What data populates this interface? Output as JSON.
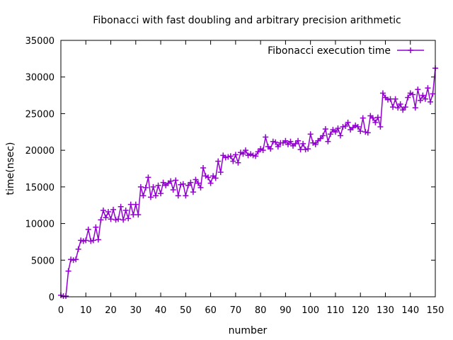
{
  "chart_data": {
    "type": "line",
    "title": "Fibonacci with fast doubling and arbitrary precision arithmetic",
    "xlabel": "number",
    "ylabel": "time(nsec)",
    "xlim": [
      0,
      150
    ],
    "ylim": [
      0,
      35000
    ],
    "xticks": [
      0,
      10,
      20,
      30,
      40,
      50,
      60,
      70,
      80,
      90,
      100,
      110,
      120,
      130,
      140,
      150
    ],
    "yticks": [
      0,
      5000,
      10000,
      15000,
      20000,
      25000,
      30000,
      35000
    ],
    "grid": false,
    "legend_position": "top-right",
    "series": [
      {
        "name": "Fibonacci execution time",
        "color": "#9400d3",
        "marker": "plus",
        "x": [
          0,
          1,
          2,
          3,
          4,
          5,
          6,
          7,
          8,
          9,
          10,
          11,
          12,
          13,
          14,
          15,
          16,
          17,
          18,
          19,
          20,
          21,
          22,
          23,
          24,
          25,
          26,
          27,
          28,
          29,
          30,
          31,
          32,
          33,
          34,
          35,
          36,
          37,
          38,
          39,
          40,
          41,
          42,
          43,
          44,
          45,
          46,
          47,
          48,
          49,
          50,
          51,
          52,
          53,
          54,
          55,
          56,
          57,
          58,
          59,
          60,
          61,
          62,
          63,
          64,
          65,
          66,
          67,
          68,
          69,
          70,
          71,
          72,
          73,
          74,
          75,
          76,
          77,
          78,
          79,
          80,
          81,
          82,
          83,
          84,
          85,
          86,
          87,
          88,
          89,
          90,
          91,
          92,
          93,
          94,
          95,
          96,
          97,
          98,
          99,
          100,
          101,
          102,
          103,
          104,
          105,
          106,
          107,
          108,
          109,
          110,
          111,
          112,
          113,
          114,
          115,
          116,
          117,
          118,
          119,
          120,
          121,
          122,
          123,
          124,
          125,
          126,
          127,
          128,
          129,
          130,
          131,
          132,
          133,
          134,
          135,
          136,
          137,
          138,
          139,
          140,
          141,
          142,
          143,
          144,
          145,
          146,
          147,
          148,
          149,
          150
        ],
        "y": [
          200,
          100,
          100,
          3500,
          5100,
          5000,
          5100,
          6500,
          7700,
          7600,
          7700,
          9200,
          7600,
          7700,
          9500,
          7800,
          10500,
          11800,
          10800,
          11600,
          10600,
          11900,
          10500,
          10600,
          12300,
          10500,
          11800,
          10700,
          12600,
          11200,
          12600,
          11200,
          15000,
          13800,
          14900,
          16300,
          13600,
          15000,
          13800,
          15200,
          14100,
          15600,
          15200,
          15500,
          15800,
          14600,
          15900,
          13800,
          15300,
          15400,
          13800,
          15200,
          15600,
          14300,
          16000,
          15500,
          14900,
          17600,
          16500,
          16300,
          15500,
          16500,
          16200,
          18500,
          17000,
          19300,
          19000,
          19100,
          19200,
          18500,
          19400,
          18300,
          19700,
          19500,
          20000,
          19300,
          19500,
          19300,
          19200,
          19800,
          20200,
          20000,
          21800,
          20500,
          20200,
          21200,
          21100,
          20500,
          21000,
          21000,
          21300,
          20800,
          21200,
          20600,
          20900,
          21300,
          20100,
          20900,
          20100,
          20200,
          22200,
          21000,
          20800,
          21300,
          21600,
          22000,
          22900,
          21200,
          22200,
          22800,
          22500,
          23000,
          22000,
          23200,
          23300,
          23800,
          22800,
          23100,
          23400,
          23200,
          22600,
          24400,
          22500,
          22400,
          24700,
          24400,
          23800,
          24500,
          23200,
          27800,
          27200,
          26900,
          27000,
          25900,
          27000,
          25800,
          26300,
          25500,
          25900,
          27200,
          27800,
          27600,
          25800,
          28300,
          26800,
          27500,
          27000,
          28500,
          26600,
          27700,
          31200
        ]
      }
    ]
  }
}
